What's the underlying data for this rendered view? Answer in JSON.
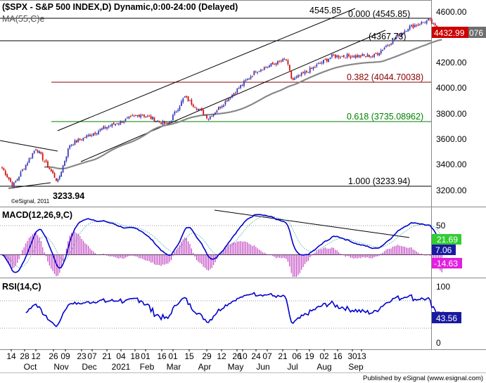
{
  "price_panel": {
    "title": "($SPX - S&P 500 INDEX,D) Dynamic,0:00-24:00 (Delayed)",
    "ma_label": "MA(55,C)e",
    "watermark": "©eSignal, 2011",
    "high_label": "4545.85",
    "low_label": "3233.94",
    "fib_levels": [
      {
        "label": "0.000 (4545.85)",
        "value": 4545.85,
        "color": "#000000"
      },
      {
        "label": "(4367.73)",
        "value": 4367.73,
        "color": "#000000"
      },
      {
        "label": "0.382 (4044.70038)",
        "value": 4044.7,
        "color": "#8b0000"
      },
      {
        "label": "0.618 (3735.08962)",
        "value": 3735.09,
        "color": "#008000"
      },
      {
        "label": "1.000 (3233.94)",
        "value": 3233.94,
        "color": "#000000"
      }
    ],
    "y_ticks": [
      "4600.00",
      "4400.00",
      "4200.00",
      "4000.00",
      "3800.00",
      "3600.00",
      "3400.00",
      "3200.00"
    ],
    "last_price": "4432.99",
    "ma_value_partial": "076",
    "last_price_color": "#cc0000"
  },
  "macd_panel": {
    "label": "MACD(12,26,9,C)",
    "y_ticks": [
      "50",
      "0"
    ],
    "signal_value": "21.69",
    "macd_value": "7.06",
    "hist_value": "-14.63"
  },
  "rsi_panel": {
    "label": "RSI(14,C)",
    "y_ticks": [
      "100",
      "50",
      "0"
    ],
    "rsi_value": "43.56"
  },
  "x_axis": {
    "day_ticks": [
      "14",
      "28",
      "12",
      "26",
      "09",
      "23",
      "07",
      "21",
      "04",
      "18",
      "01",
      "16",
      "01",
      "15",
      "29",
      "12",
      "26",
      "10",
      "24",
      "07",
      "21",
      "06",
      "19",
      "02",
      "16",
      "30",
      "13"
    ],
    "month_ticks": [
      "Oct",
      "Nov",
      "Dec",
      "2021",
      "Feb",
      "Mar",
      "Apr",
      "May",
      "Jun",
      "Jul",
      "Aug",
      "Sep"
    ]
  },
  "footer": "Published by eSignal (www.esignal.com)",
  "chart_data": {
    "type": "candlestick",
    "symbol": "$SPX",
    "ylim": [
      3150,
      4650
    ],
    "anchor_points": [
      {
        "date": "2020-09-14",
        "close": 3380
      },
      {
        "date": "2020-09-23",
        "close": 3237
      },
      {
        "date": "2020-10-12",
        "close": 3535
      },
      {
        "date": "2020-10-30",
        "close": 3270
      },
      {
        "date": "2020-11-09",
        "close": 3560
      },
      {
        "date": "2020-12-07",
        "close": 3690
      },
      {
        "date": "2021-01-07",
        "close": 3800
      },
      {
        "date": "2021-01-29",
        "close": 3715
      },
      {
        "date": "2021-02-12",
        "close": 3935
      },
      {
        "date": "2021-03-04",
        "close": 3770
      },
      {
        "date": "2021-04-12",
        "close": 4140
      },
      {
        "date": "2021-05-07",
        "close": 4230
      },
      {
        "date": "2021-05-12",
        "close": 4063
      },
      {
        "date": "2021-06-14",
        "close": 4255
      },
      {
        "date": "2021-07-19",
        "close": 4258
      },
      {
        "date": "2021-08-16",
        "close": 4480
      },
      {
        "date": "2021-09-02",
        "close": 4537
      },
      {
        "date": "2021-09-13",
        "close": 4433
      }
    ]
  }
}
